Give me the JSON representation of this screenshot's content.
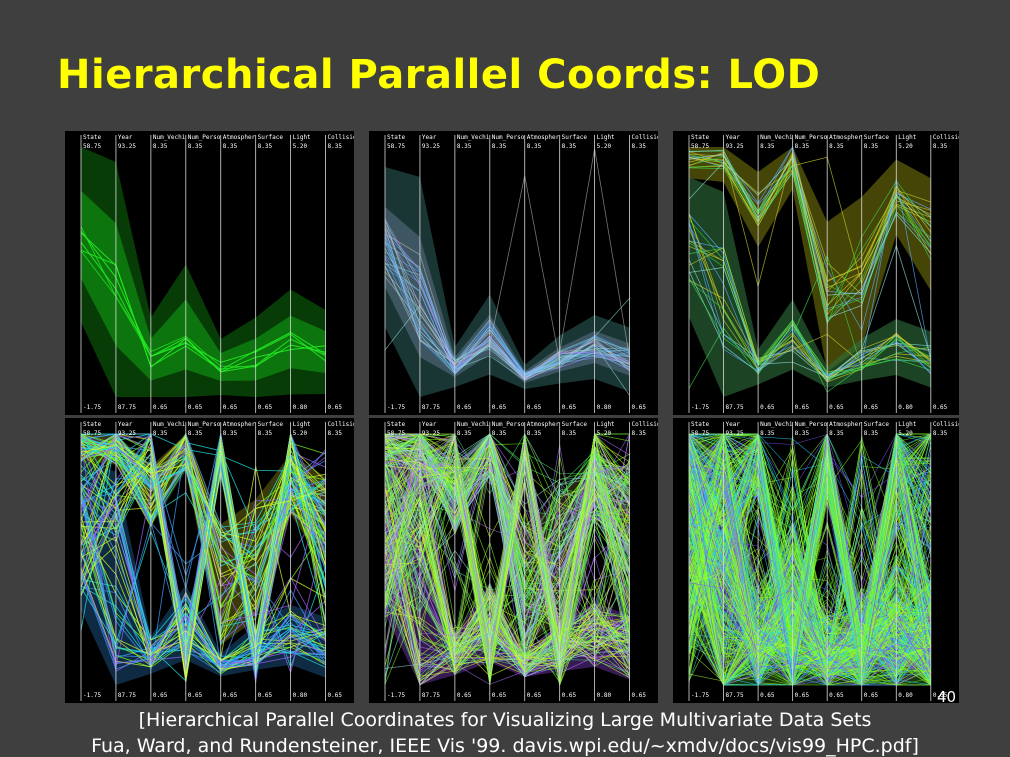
{
  "slide": {
    "title": "Hierarchical Parallel Coords: LOD",
    "page_number": "40",
    "citation_line1": "[Hierarchical Parallel Coordinates for Visualizing Large Multivariate Data Sets",
    "citation_line2": "Fua, Ward, and Rundensteiner, IEEE Vis '99. davis.wpi.edu/~xmdv/docs/vis99_HPC.pdf]"
  },
  "colors": {
    "background": "#3f3f3f",
    "title": "#ffff00",
    "text": "#ffffff",
    "axis": "#d8d8d8"
  },
  "chart_data": {
    "type": "parallel_coordinates",
    "axes": [
      "State",
      "Year",
      "Num_Vechi",
      "Num_Perso",
      "Atmospher",
      "Surface",
      "Light",
      "Collision"
    ],
    "max_labels": [
      "58.75",
      "93.25",
      "8.35",
      "8.35",
      "8.35",
      "8.35",
      "5.20",
      "8.35"
    ],
    "min_labels": [
      "-1.75",
      "87.75",
      "0.65",
      "0.65",
      "0.65",
      "0.65",
      "0.80",
      "0.65"
    ],
    "panels": [
      {
        "id": "lod-1",
        "dominant_color": "#19c419",
        "density": "coarse"
      },
      {
        "id": "lod-2",
        "dominant_color": "#90e0e0",
        "density": "coarse"
      },
      {
        "id": "lod-3",
        "dominant_color": "#c8c810",
        "density": "medium"
      },
      {
        "id": "lod-4",
        "dominant_color": "#7dff20",
        "density": "medium"
      },
      {
        "id": "lod-5",
        "dominant_color": "#9060ff",
        "density": "fine"
      },
      {
        "id": "lod-6",
        "dominant_color": "#8dff1a",
        "density": "finest"
      }
    ]
  }
}
